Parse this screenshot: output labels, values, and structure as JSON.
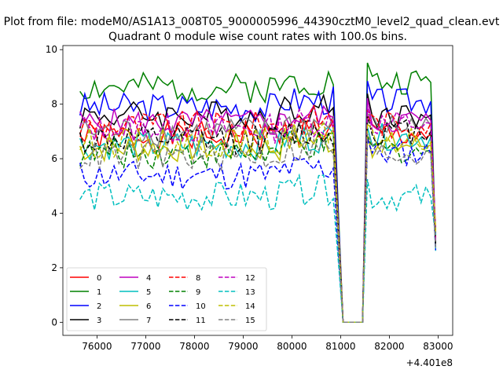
{
  "suptitle": "Plot from file: modeM0/AS1A13_008T05_9000005996_44390cztM0_level2_quad_clean.evt",
  "chart_data": {
    "type": "line",
    "title": "Quadrant 0 module wise count rates with 100.0s bins.",
    "xlabel": "",
    "ylabel": "",
    "x_offset_label": "+4.401e8",
    "xlim": [
      75300,
      83300
    ],
    "ylim": [
      -0.48,
      10.15
    ],
    "xticks": [
      76000,
      77000,
      78000,
      79000,
      80000,
      81000,
      82000,
      83000
    ],
    "xtick_labels": [
      "76000",
      "77000",
      "78000",
      "79000",
      "80000",
      "81000",
      "82000",
      "83000"
    ],
    "yticks": [
      0,
      2,
      4,
      6,
      8,
      10
    ],
    "ytick_labels": [
      "0",
      "2",
      "4",
      "6",
      "8",
      "10"
    ],
    "grid": false,
    "legend_position": "lower-left",
    "legend_ncol": 4,
    "x_start": 75650,
    "x_step": 100,
    "x_end": 82950,
    "gap": [
      80850,
      81050,
      81450,
      81550
    ],
    "series": [
      {
        "name": "0",
        "color": "#ff0000",
        "dash": "solid",
        "mean_before": 6.8,
        "mean_after": 6.9,
        "seed": 1
      },
      {
        "name": "1",
        "color": "#008000",
        "dash": "solid",
        "mean_before": 8.6,
        "mean_after": 8.8,
        "seed": 2
      },
      {
        "name": "2",
        "color": "#0000ff",
        "dash": "solid",
        "mean_before": 7.9,
        "mean_after": 8.1,
        "seed": 3
      },
      {
        "name": "3",
        "color": "#000000",
        "dash": "solid",
        "mean_before": 7.6,
        "mean_after": 7.6,
        "seed": 4
      },
      {
        "name": "4",
        "color": "#bf00bf",
        "dash": "solid",
        "mean_before": 7.3,
        "mean_after": 7.4,
        "seed": 5
      },
      {
        "name": "5",
        "color": "#00bfbf",
        "dash": "solid",
        "mean_before": 6.5,
        "mean_after": 6.8,
        "seed": 6
      },
      {
        "name": "6",
        "color": "#bfbf00",
        "dash": "solid",
        "mean_before": 6.4,
        "mean_after": 6.5,
        "seed": 7
      },
      {
        "name": "7",
        "color": "#808080",
        "dash": "solid",
        "mean_before": 7.0,
        "mean_after": 7.2,
        "seed": 8
      },
      {
        "name": "8",
        "color": "#ff0000",
        "dash": "dashed",
        "mean_before": 7.2,
        "mean_after": 7.3,
        "seed": 9
      },
      {
        "name": "9",
        "color": "#008000",
        "dash": "dashed",
        "mean_before": 6.2,
        "mean_after": 6.3,
        "seed": 10
      },
      {
        "name": "10",
        "color": "#0000ff",
        "dash": "dashed",
        "mean_before": 5.4,
        "mean_after": 6.2,
        "seed": 11
      },
      {
        "name": "11",
        "color": "#000000",
        "dash": "dashed",
        "mean_before": 6.7,
        "mean_after": 7.0,
        "seed": 12
      },
      {
        "name": "12",
        "color": "#bf00bf",
        "dash": "dashed",
        "mean_before": 7.1,
        "mean_after": 7.3,
        "seed": 13
      },
      {
        "name": "13",
        "color": "#00bfbf",
        "dash": "dashed",
        "mean_before": 4.6,
        "mean_after": 4.6,
        "seed": 14
      },
      {
        "name": "14",
        "color": "#bfbf00",
        "dash": "dashed",
        "mean_before": 6.6,
        "mean_after": 6.6,
        "seed": 15
      },
      {
        "name": "15",
        "color": "#808080",
        "dash": "dashed",
        "mean_before": 6.1,
        "mean_after": 6.2,
        "seed": 16
      }
    ]
  }
}
